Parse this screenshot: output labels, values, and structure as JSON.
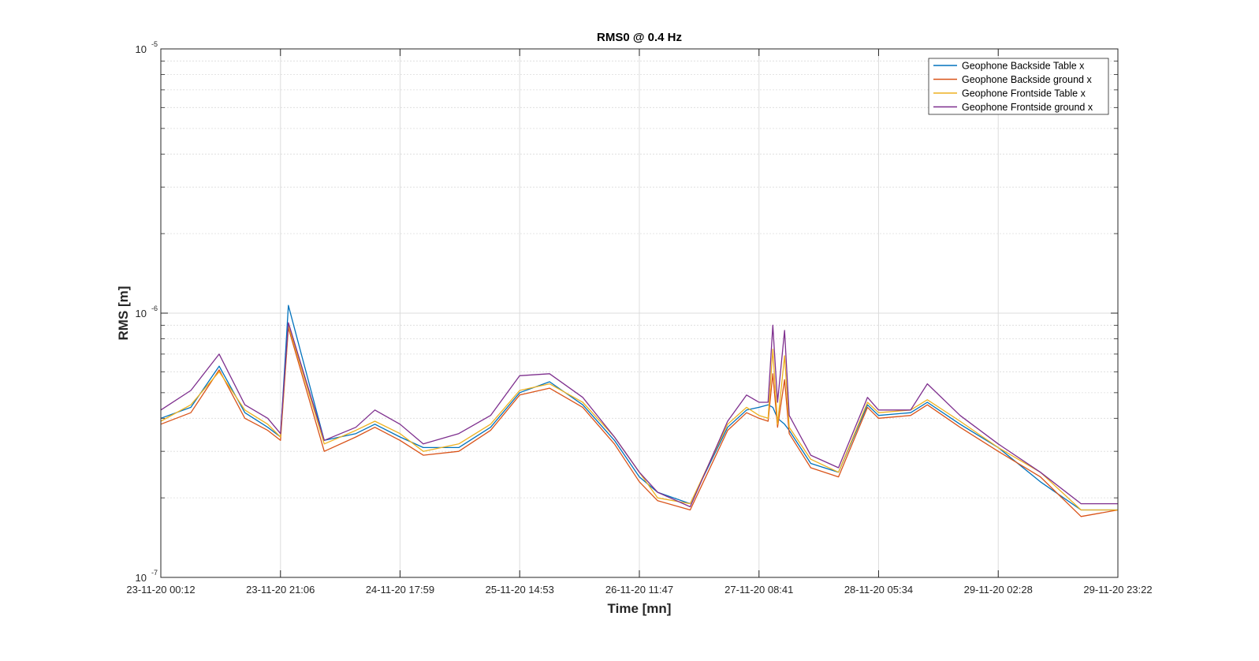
{
  "chart_data": {
    "type": "line",
    "title": "RMS0 @ 0.4 Hz",
    "xlabel": "Time [mn]",
    "ylabel": "RMS [m]",
    "yscale": "log",
    "ylim": [
      1e-07,
      1e-05
    ],
    "ytick_labels": [
      {
        "base": "10",
        "exp": "-7"
      },
      {
        "base": "10",
        "exp": "-6"
      },
      {
        "base": "10",
        "exp": "-5"
      }
    ],
    "xlim": [
      "23-11-20 00:12",
      "29-11-20 23:22"
    ],
    "xtick_labels": [
      "23-11-20 00:12",
      "23-11-20 21:06",
      "24-11-20 17:59",
      "25-11-20 14:53",
      "26-11-20 11:47",
      "27-11-20 08:41",
      "28-11-20 05:34",
      "29-11-20 02:28",
      "29-11-20 23:22"
    ],
    "grid": true,
    "legend_position": "top-right",
    "colors": [
      "#0072BD",
      "#D95319",
      "#EDB120",
      "#7E2F8E"
    ],
    "x": [
      "23-11-20 00:12",
      "23-11-20 05:27",
      "23-11-20 10:23",
      "23-11-20 14:53",
      "23-11-20 18:52",
      "23-11-20 21:06",
      "23-11-20 22:29",
      "24-11-20 04:45",
      "24-11-20 10:16",
      "24-11-20 13:35",
      "24-11-20 17:59",
      "24-11-20 22:02",
      "25-11-20 04:14",
      "25-11-20 09:48",
      "25-11-20 14:53",
      "25-11-20 20:06",
      "26-11-20 01:54",
      "26-11-20 07:26",
      "26-11-20 11:47",
      "26-11-20 14:59",
      "26-11-20 20:40",
      "27-11-20 03:12",
      "27-11-20 06:31",
      "27-11-20 08:41",
      "27-11-20 10:16",
      "27-11-20 11:06",
      "27-11-20 11:55",
      "27-11-20 13:09",
      "27-11-20 13:58",
      "27-11-20 17:43",
      "27-11-20 22:34",
      "28-11-20 03:38",
      "28-11-20 05:34",
      "28-11-20 11:10",
      "28-11-20 14:05",
      "28-11-20 19:48",
      "29-11-20 02:28",
      "29-11-20 09:50",
      "29-11-20 16:56",
      "29-11-20 23:22"
    ],
    "series": [
      {
        "name": "Geophone Backside Table x",
        "values": [
          4e-07,
          4.4e-07,
          6.3e-07,
          4.2e-07,
          3.7e-07,
          3.4e-07,
          1.07e-06,
          3.3e-07,
          3.5e-07,
          3.8e-07,
          3.4e-07,
          3.1e-07,
          3.1e-07,
          3.7e-07,
          5e-07,
          5.5e-07,
          4.5e-07,
          3.3e-07,
          2.4e-07,
          2.1e-07,
          1.9e-07,
          3.7e-07,
          4.3e-07,
          4.4e-07,
          4.5e-07,
          4.4e-07,
          4e-07,
          3.8e-07,
          3.6e-07,
          2.7e-07,
          2.5e-07,
          4.5e-07,
          4.1e-07,
          4.2e-07,
          4.6e-07,
          3.8e-07,
          3.1e-07,
          2.3e-07,
          1.8e-07,
          1.8e-07
        ]
      },
      {
        "name": "Geophone Backside ground x",
        "values": [
          3.8e-07,
          4.2e-07,
          6.1e-07,
          4e-07,
          3.6e-07,
          3.3e-07,
          8.8e-07,
          3e-07,
          3.4e-07,
          3.7e-07,
          3.3e-07,
          2.9e-07,
          3e-07,
          3.6e-07,
          4.9e-07,
          5.2e-07,
          4.4e-07,
          3.2e-07,
          2.3e-07,
          1.95e-07,
          1.8e-07,
          3.6e-07,
          4.2e-07,
          4e-07,
          3.9e-07,
          5.9e-07,
          3.7e-07,
          5.6e-07,
          3.5e-07,
          2.6e-07,
          2.4e-07,
          4.4e-07,
          4e-07,
          4.1e-07,
          4.5e-07,
          3.7e-07,
          3e-07,
          2.4e-07,
          1.7e-07,
          1.8e-07
        ]
      },
      {
        "name": "Geophone Frontside Table x",
        "values": [
          3.9e-07,
          4.5e-07,
          6e-07,
          4.3e-07,
          3.8e-07,
          3.4e-07,
          9e-07,
          3.2e-07,
          3.6e-07,
          3.9e-07,
          3.5e-07,
          3e-07,
          3.2e-07,
          3.8e-07,
          5.1e-07,
          5.4e-07,
          4.6e-07,
          3.4e-07,
          2.5e-07,
          2e-07,
          1.9e-07,
          3.8e-07,
          4.4e-07,
          4.1e-07,
          4e-07,
          7.3e-07,
          3.8e-07,
          6.9e-07,
          3.7e-07,
          2.8e-07,
          2.5e-07,
          4.6e-07,
          4.2e-07,
          4.3e-07,
          4.7e-07,
          3.9e-07,
          3.1e-07,
          2.5e-07,
          1.8e-07,
          1.8e-07
        ]
      },
      {
        "name": "Geophone Frontside ground x",
        "values": [
          4.3e-07,
          5.1e-07,
          7e-07,
          4.5e-07,
          4e-07,
          3.5e-07,
          9.2e-07,
          3.3e-07,
          3.7e-07,
          4.3e-07,
          3.8e-07,
          3.2e-07,
          3.5e-07,
          4.1e-07,
          5.8e-07,
          5.9e-07,
          4.8e-07,
          3.4e-07,
          2.5e-07,
          2.1e-07,
          1.85e-07,
          3.9e-07,
          4.9e-07,
          4.6e-07,
          4.6e-07,
          9e-07,
          4.6e-07,
          8.6e-07,
          4.1e-07,
          2.9e-07,
          2.6e-07,
          4.8e-07,
          4.3e-07,
          4.3e-07,
          5.4e-07,
          4.1e-07,
          3.2e-07,
          2.5e-07,
          1.9e-07,
          1.9e-07
        ]
      }
    ]
  }
}
